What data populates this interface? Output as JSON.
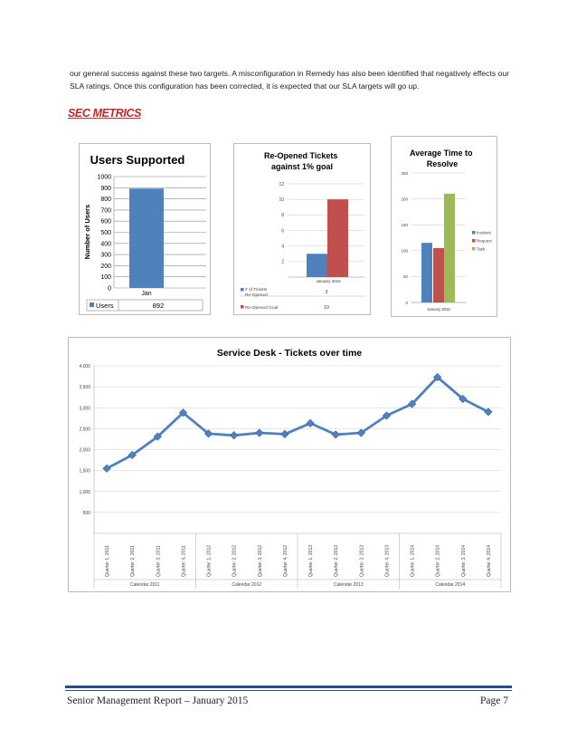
{
  "body_text": "our general success against these two targets.  A misconfiguration in Remedy has also been identified that negatively effects our SLA ratings.  Once this configuration has been corrected, it is expected that our SLA targets will go up.",
  "section_title": "SEC METRICS",
  "footer": {
    "left": "Senior Management Report – January 2015",
    "right": "Page 7"
  },
  "chart_data": [
    {
      "type": "bar",
      "title": "Users Supported",
      "ylabel": "Number of Users",
      "categories": [
        "Jan"
      ],
      "yticks": [
        "0",
        "100",
        "200",
        "300",
        "400",
        "500",
        "600",
        "700",
        "800",
        "900",
        "1000"
      ],
      "ylim": [
        0,
        1000
      ],
      "series": [
        {
          "name": "Users",
          "values": [
            892
          ]
        }
      ],
      "table": {
        "label": "Users",
        "value": "892"
      },
      "colors": [
        "#4f81bd"
      ],
      "grid": true
    },
    {
      "type": "bar",
      "title": "Re-Opened Tickets against 1% goal",
      "categories": [
        "January 2015"
      ],
      "yticks": [
        "2",
        "4",
        "6",
        "8",
        "10",
        "12"
      ],
      "ylim": [
        0,
        12
      ],
      "series": [
        {
          "name": "# of Tickets Re-Opened",
          "values": [
            3
          ]
        },
        {
          "name": "Re-Opened Goal",
          "values": [
            10
          ]
        }
      ],
      "table_values": [
        "3",
        "10"
      ],
      "colors": [
        "#4f81bd",
        "#c0504d"
      ],
      "grid": true
    },
    {
      "type": "bar",
      "title": "Average Time to Resolve",
      "categories": [
        "January 2015"
      ],
      "yticks": [
        "0",
        "50",
        "100",
        "150",
        "200",
        "250"
      ],
      "ylim": [
        0,
        250
      ],
      "series": [
        {
          "name": "Incident",
          "values": [
            115
          ]
        },
        {
          "name": "Request",
          "values": [
            105
          ]
        },
        {
          "name": "Task",
          "values": [
            210
          ]
        }
      ],
      "legend": "right",
      "colors": [
        "#4f81bd",
        "#c0504d",
        "#9bbb59"
      ],
      "grid": true
    },
    {
      "type": "line",
      "title": "Service Desk - Tickets over time",
      "yticks": [
        "500",
        "1,000",
        "1,500",
        "2,000",
        "2,500",
        "3,000",
        "3,500",
        "4,000"
      ],
      "ylim": [
        0,
        4000
      ],
      "categories": [
        "Quarter 1, 2011",
        "Quarter 2, 2011",
        "Quarter 3, 2011",
        "Quarter 4, 2011",
        "Quarter 1, 2012",
        "Quarter 2, 2012",
        "Quarter 3, 2012",
        "Quarter 4, 2012",
        "Quarter 1, 2013",
        "Quarter 2, 2013",
        "Quarter 3, 2013",
        "Quarter 4, 2013",
        "Quarter 1, 2014",
        "Quarter 2, 2014",
        "Quarter 3, 2014",
        "Quarter 4, 2014"
      ],
      "groups": [
        "Calendar 2011",
        "Calendar 2012",
        "Calendar 2013",
        "Calendar 2014"
      ],
      "series": [
        {
          "values": [
            1550,
            1870,
            2310,
            2880,
            2380,
            2340,
            2400,
            2370,
            2630,
            2360,
            2400,
            2810,
            3090,
            3730,
            3210,
            2900
          ]
        }
      ],
      "colors": [
        "#4f81bd"
      ],
      "grid": true
    }
  ]
}
